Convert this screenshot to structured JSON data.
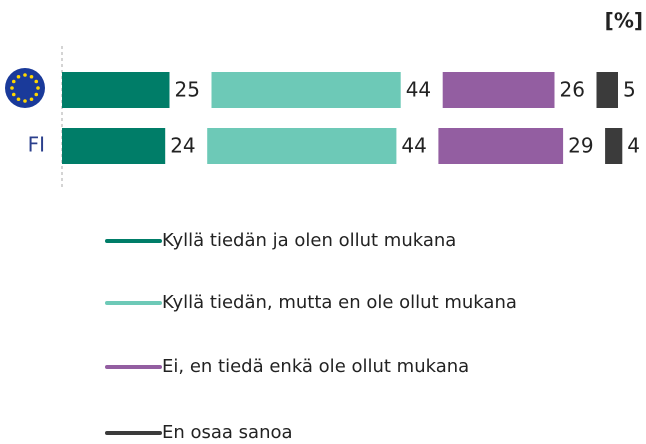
{
  "chart_data": {
    "type": "bar",
    "orientation": "horizontal",
    "stacked": true,
    "title": "[%]",
    "categories": [
      null,
      "FI"
    ],
    "series": [
      {
        "name": "Kyllä tiedän ja olen ollut mukana",
        "color": "#007d68",
        "values": [
          25,
          24
        ]
      },
      {
        "name": "Kyllä tiedän, mutta en ole ollut mukana",
        "color": "#6dc9b7",
        "values": [
          44,
          44
        ]
      },
      {
        "name": "Ei, en tiedä enkä ole ollut mukana",
        "color": "#935ea1",
        "values": [
          26,
          29
        ]
      },
      {
        "name": "En osaa sanoa",
        "color": "#3b3b3b",
        "values": [
          5,
          4
        ]
      }
    ]
  }
}
